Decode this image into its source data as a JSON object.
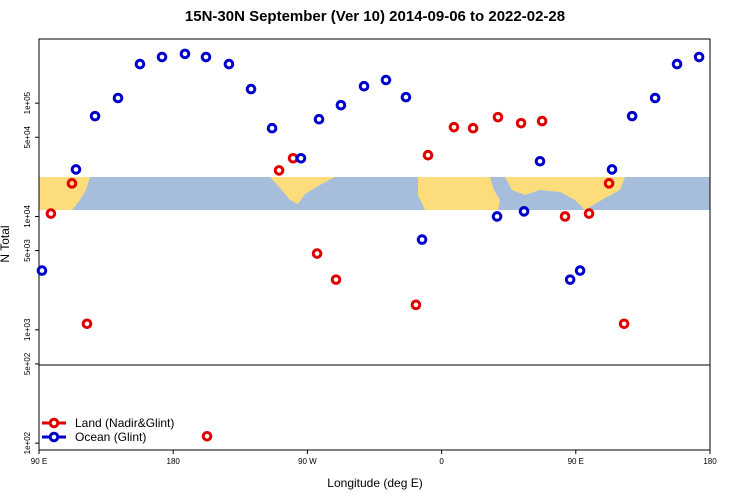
{
  "chart_data": {
    "type": "scatter",
    "title": "15N-30N September (Ver 10)   2014-09-06 to 2022-02-28",
    "x_label": "Longitude (deg E)",
    "y_label": "N Total",
    "xlim": [
      90,
      540
    ],
    "ylim": [
      87,
      368000
    ],
    "y_log": true,
    "legend": "bottom-left",
    "xticks": [
      {
        "value": 90,
        "label": "90 E"
      },
      {
        "value": 180,
        "label": "180"
      },
      {
        "value": 270,
        "label": "90 W"
      },
      {
        "value": 360,
        "label": "0"
      },
      {
        "value": 450,
        "label": "90 E"
      },
      {
        "value": 540,
        "label": "180"
      }
    ],
    "yticks": [
      {
        "value": 100000,
        "label": "1e+05"
      },
      {
        "value": 50000,
        "label": "5e+04"
      },
      {
        "value": 10000,
        "label": "1e+04"
      },
      {
        "value": 5000,
        "label": "5e+03"
      },
      {
        "value": 1000,
        "label": "1e+03"
      },
      {
        "value": 500,
        "label": "5e+02"
      },
      {
        "value": 100,
        "label": "1e+02"
      }
    ],
    "series": [
      {
        "name": "Land (Nadir&Glint)",
        "color": "#e00000",
        "x": [
          98.0,
          112.1,
          122.2,
          202.7,
          251.0,
          260.4,
          276.5,
          289.2,
          342.8,
          350.9,
          368.3,
          381.1,
          397.8,
          413.3,
          427.4,
          442.8,
          458.9,
          472.3,
          482.4
        ],
        "values": [
          10600,
          19600,
          1130,
          115,
          25500,
          32600,
          4710,
          2770,
          1660,
          34700,
          61400,
          60100,
          75200,
          66600,
          69400,
          10000,
          10600,
          19600,
          1130
        ]
      },
      {
        "name": "Ocean (Glint)",
        "color": "#0000cc",
        "x": [
          92.0,
          114.8,
          127.6,
          143.0,
          157.7,
          172.5,
          187.9,
          202.0,
          217.4,
          232.2,
          246.3,
          265.7,
          277.8,
          292.5,
          308.0,
          322.7,
          336.1,
          346.9,
          397.2,
          415.3,
          426.0,
          446.2,
          452.9,
          474.3,
          487.8,
          503.2,
          517.9,
          532.7
        ],
        "values": [
          3330,
          26000,
          76800,
          111000,
          221000,
          255000,
          272000,
          255000,
          221000,
          133000,
          60100,
          32600,
          72100,
          96000,
          141000,
          160000,
          113000,
          6250,
          10000,
          11100,
          30700,
          2770,
          3330,
          26000,
          76800,
          111000,
          221000,
          255000
        ]
      }
    ]
  }
}
